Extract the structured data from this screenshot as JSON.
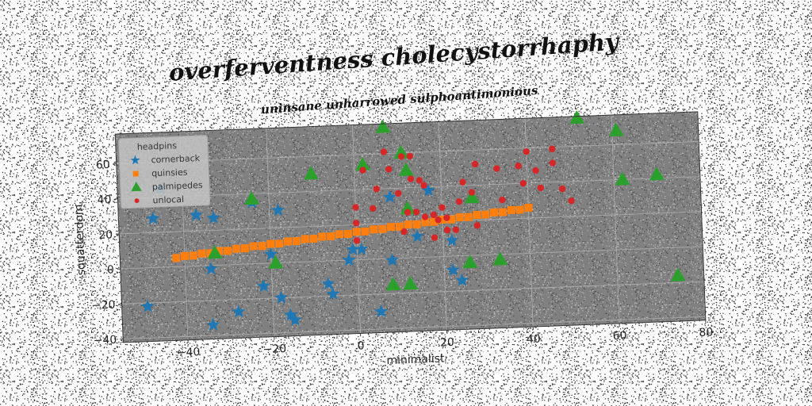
{
  "chart_data": {
    "type": "scatter",
    "title": "overferventness cholecystorrhaphy",
    "subtitle": "uninsane unharrowed sulphoantimonious",
    "xlabel": "minimalist",
    "ylabel": "squatterdom",
    "xlim": [
      -55,
      80
    ],
    "ylim": [
      -42,
      77
    ],
    "xticks": [
      -40,
      -20,
      0,
      20,
      40,
      60,
      80
    ],
    "yticks": [
      -40,
      -20,
      0,
      20,
      40,
      60
    ],
    "grid": true,
    "legend_title": "headpins",
    "legend_position": "top-left",
    "background_color": "#808080",
    "series": [
      {
        "name": "cornerback",
        "marker": "star",
        "color": "#1f77b4",
        "points": [
          [
            -47,
            28
          ],
          [
            -37,
            29
          ],
          [
            -33,
            27
          ],
          [
            -24,
            35
          ],
          [
            -18,
            30
          ],
          [
            -34,
            -2
          ],
          [
            -22,
            -13
          ],
          [
            -18,
            -20
          ],
          [
            -16,
            -30
          ],
          [
            -15,
            -33
          ],
          [
            -28,
            -27
          ],
          [
            -34,
            -34
          ],
          [
            -49,
            -22
          ],
          [
            -7,
            -13
          ],
          [
            -6,
            -19
          ],
          [
            -2,
            0
          ],
          [
            -1,
            6
          ],
          [
            8,
            35
          ],
          [
            1,
            6
          ],
          [
            8,
            -1
          ],
          [
            5,
            -30
          ],
          [
            14,
            12
          ],
          [
            17,
            38
          ],
          [
            22,
            9
          ],
          [
            22,
            -8
          ],
          [
            24,
            -14
          ],
          [
            -20,
            5
          ],
          [
            -45,
            45
          ]
        ]
      },
      {
        "name": "quinsies",
        "marker": "square",
        "color": "#ff7f0e",
        "points": [
          [
            -42,
            5
          ],
          [
            -40,
            6
          ],
          [
            -38,
            6
          ],
          [
            -36,
            7
          ],
          [
            -34,
            7
          ],
          [
            -32,
            8
          ],
          [
            -30,
            8
          ],
          [
            -28,
            9
          ],
          [
            -26,
            9
          ],
          [
            -24,
            10
          ],
          [
            -22,
            10
          ],
          [
            -20,
            11
          ],
          [
            -18,
            11
          ],
          [
            -16,
            12
          ],
          [
            -14,
            12
          ],
          [
            -12,
            13
          ],
          [
            -10,
            13
          ],
          [
            -8,
            14
          ],
          [
            -6,
            14
          ],
          [
            -4,
            15
          ],
          [
            -2,
            15
          ],
          [
            0,
            16
          ],
          [
            2,
            16
          ],
          [
            4,
            17
          ],
          [
            6,
            17
          ],
          [
            8,
            18
          ],
          [
            10,
            18
          ],
          [
            12,
            19
          ],
          [
            14,
            19
          ],
          [
            16,
            20
          ],
          [
            18,
            20
          ],
          [
            20,
            21
          ],
          [
            22,
            21
          ],
          [
            24,
            22
          ],
          [
            26,
            22
          ],
          [
            28,
            23
          ],
          [
            30,
            23
          ],
          [
            32,
            24
          ],
          [
            34,
            24
          ],
          [
            36,
            25
          ],
          [
            38,
            25
          ],
          [
            40,
            26
          ]
        ]
      },
      {
        "name": "palmipedes",
        "marker": "triangle",
        "color": "#2ca02c",
        "points": [
          [
            7,
            75
          ],
          [
            52,
            76
          ],
          [
            61,
            68
          ],
          [
            11,
            60
          ],
          [
            2,
            54
          ],
          [
            -10,
            50
          ],
          [
            12,
            50
          ],
          [
            -24,
            37
          ],
          [
            62,
            40
          ],
          [
            70,
            42
          ],
          [
            12,
            28
          ],
          [
            27,
            33
          ],
          [
            -33,
            7
          ],
          [
            -19,
            0
          ],
          [
            26,
            -4
          ],
          [
            33,
            -3
          ],
          [
            8,
            -15
          ],
          [
            12,
            -15
          ],
          [
            74,
            -16
          ]
        ]
      },
      {
        "name": "unlocal",
        "marker": "circle",
        "color": "#d62728",
        "points": [
          [
            7,
            61
          ],
          [
            11,
            58
          ],
          [
            13,
            58
          ],
          [
            2,
            51
          ],
          [
            8,
            51
          ],
          [
            13,
            45
          ],
          [
            15,
            44
          ],
          [
            5,
            40
          ],
          [
            16,
            41
          ],
          [
            10,
            37
          ],
          [
            0,
            30
          ],
          [
            4,
            29
          ],
          [
            12,
            26
          ],
          [
            14,
            26
          ],
          [
            16,
            23
          ],
          [
            18,
            24
          ],
          [
            20,
            28
          ],
          [
            21,
            22
          ],
          [
            19,
            21
          ],
          [
            0,
            21
          ],
          [
            11,
            15
          ],
          [
            21,
            15
          ],
          [
            23,
            15
          ],
          [
            28,
            17
          ],
          [
            18,
            11
          ],
          [
            0,
            11
          ],
          [
            25,
            42
          ],
          [
            27,
            36
          ],
          [
            28,
            52
          ],
          [
            33,
            49
          ],
          [
            38,
            50
          ],
          [
            40,
            58
          ],
          [
            42,
            47
          ],
          [
            39,
            40
          ],
          [
            43,
            37
          ],
          [
            46,
            59
          ],
          [
            46,
            51
          ],
          [
            48,
            36
          ],
          [
            50,
            29
          ],
          [
            34,
            31
          ],
          [
            24,
            31
          ]
        ]
      }
    ]
  }
}
